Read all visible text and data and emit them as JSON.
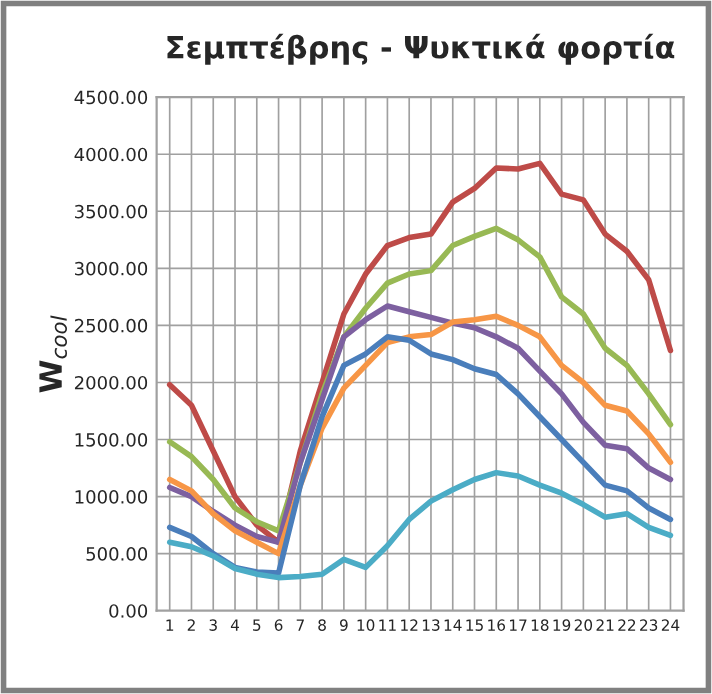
{
  "chart_data": {
    "type": "line",
    "title": "Σεμπτέβρης - Ψυκτικά φορτία",
    "ylabel": "W$_{cool}$",
    "categories": [
      "1",
      "2",
      "3",
      "4",
      "5",
      "6",
      "7",
      "8",
      "9",
      "10",
      "11",
      "12",
      "13",
      "14",
      "15",
      "16",
      "17",
      "18",
      "19",
      "20",
      "21",
      "22",
      "23",
      "24"
    ],
    "series": [
      {
        "color": "#be4b48",
        "values": [
          1980,
          1800,
          1400,
          1000,
          750,
          600,
          1400,
          2000,
          2600,
          2950,
          3200,
          3270,
          3300,
          3580,
          3700,
          3880,
          3870,
          3920,
          3650,
          3600,
          3300,
          3150,
          2900,
          2280
        ]
      },
      {
        "color": "#98b954",
        "values": [
          1480,
          1350,
          1150,
          900,
          780,
          700,
          1300,
          1900,
          2400,
          2650,
          2870,
          2950,
          2980,
          3200,
          3280,
          3350,
          3250,
          3100,
          2750,
          2600,
          2300,
          2150,
          1900,
          1630
        ]
      },
      {
        "color": "#7d60a0",
        "values": [
          1080,
          1000,
          870,
          750,
          650,
          600,
          1300,
          1850,
          2400,
          2550,
          2670,
          2620,
          2570,
          2520,
          2480,
          2400,
          2300,
          2100,
          1900,
          1650,
          1450,
          1420,
          1250,
          1150
        ]
      },
      {
        "color": "#f79646",
        "values": [
          1150,
          1050,
          850,
          700,
          600,
          500,
          1100,
          1600,
          1950,
          2150,
          2350,
          2400,
          2420,
          2530,
          2550,
          2580,
          2500,
          2400,
          2150,
          2000,
          1800,
          1750,
          1550,
          1300
        ]
      },
      {
        "color": "#4a7ebb",
        "values": [
          730,
          650,
          500,
          380,
          340,
          330,
          1100,
          1700,
          2150,
          2250,
          2400,
          2370,
          2250,
          2200,
          2120,
          2070,
          1900,
          1700,
          1500,
          1300,
          1100,
          1050,
          900,
          800
        ]
      },
      {
        "color": "#4bacc6",
        "values": [
          600,
          560,
          480,
          370,
          320,
          290,
          300,
          320,
          450,
          380,
          570,
          800,
          960,
          1060,
          1150,
          1210,
          1180,
          1100,
          1030,
          930,
          820,
          850,
          730,
          660
        ]
      }
    ],
    "ylim": [
      0,
      4500
    ],
    "yticks": [
      {
        "value": 0,
        "label": "0.00"
      },
      {
        "value": 500,
        "label": "500.00"
      },
      {
        "value": 1000,
        "label": "1000.00"
      },
      {
        "value": 1500,
        "label": "1500.00"
      },
      {
        "value": 2000,
        "label": "2000.00"
      },
      {
        "value": 2500,
        "label": "2500.00"
      },
      {
        "value": 3000,
        "label": "3000.00"
      },
      {
        "value": 3500,
        "label": "3500.00"
      },
      {
        "value": 4000,
        "label": "4000.00"
      },
      {
        "value": 4500,
        "label": "4500.00"
      }
    ],
    "grid": true,
    "legend": false,
    "marker": "none",
    "line_style": "solid"
  }
}
